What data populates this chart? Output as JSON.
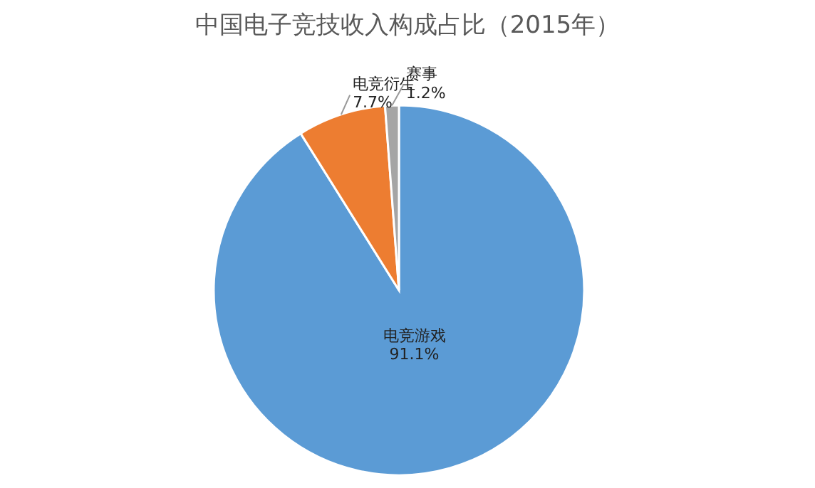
{
  "chart_data": {
    "type": "pie",
    "title": "中国电子竞技收入构成占比（2015年）",
    "categories": [
      "电竞游戏",
      "电竞衍生",
      "赛事"
    ],
    "values": [
      91.1,
      7.7,
      1.2
    ],
    "colors": [
      "#5b9bd5",
      "#ed7d31",
      "#a5a5a5"
    ],
    "value_labels": [
      "91.1%",
      "7.7%",
      "1.2%"
    ],
    "legend": false
  }
}
